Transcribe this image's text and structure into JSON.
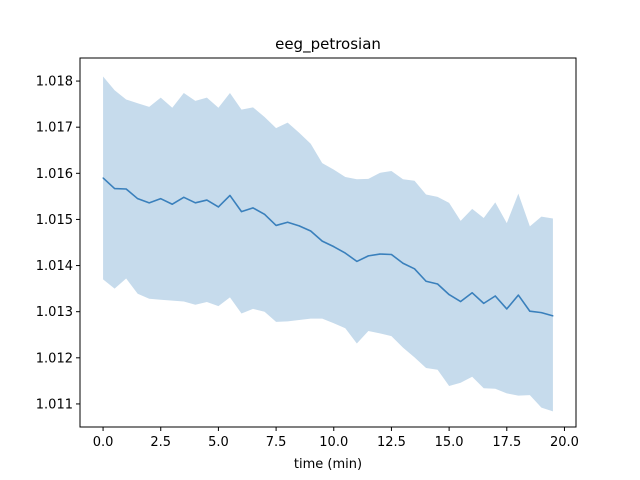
{
  "chart_data": {
    "type": "line",
    "title": "eeg_petrosian",
    "xlabel": "time (min)",
    "ylabel": "",
    "xlim": [
      -1.0,
      20.5
    ],
    "ylim": [
      1.0105,
      1.0185
    ],
    "xticks": [
      0.0,
      2.5,
      5.0,
      7.5,
      10.0,
      12.5,
      15.0,
      17.5,
      20.0
    ],
    "xtick_labels": [
      "0.0",
      "2.5",
      "5.0",
      "7.5",
      "10.0",
      "12.5",
      "15.0",
      "17.5",
      "20.0"
    ],
    "yticks": [
      1.011,
      1.012,
      1.013,
      1.014,
      1.015,
      1.016,
      1.017,
      1.018
    ],
    "ytick_labels": [
      "1.011",
      "1.012",
      "1.013",
      "1.014",
      "1.015",
      "1.016",
      "1.017",
      "1.018"
    ],
    "grid": false,
    "colors": {
      "line": "#3a80bc",
      "band": "#c6dbec"
    },
    "series": [
      {
        "x": [
          0.0,
          0.5,
          1.0,
          1.5,
          2.0,
          2.5,
          3.0,
          3.5,
          4.0,
          4.5,
          5.0,
          5.5,
          6.0,
          6.5,
          7.0,
          7.5,
          8.0,
          8.5,
          9.0,
          9.5,
          10.0,
          10.5,
          11.0,
          11.5,
          12.0,
          12.5,
          13.0,
          13.5,
          14.0,
          14.5,
          15.0,
          15.5,
          16.0,
          16.5,
          17.0,
          17.5,
          18.0,
          18.5,
          19.0,
          19.5
        ],
        "mean": [
          1.0159,
          1.01567,
          1.01566,
          1.01545,
          1.01536,
          1.01545,
          1.01533,
          1.01548,
          1.01536,
          1.01542,
          1.01527,
          1.01552,
          1.01517,
          1.01525,
          1.01511,
          1.01487,
          1.01494,
          1.01486,
          1.01475,
          1.01453,
          1.01441,
          1.01427,
          1.01409,
          1.01421,
          1.01425,
          1.01424,
          1.01405,
          1.01393,
          1.01366,
          1.0136,
          1.01337,
          1.01322,
          1.01341,
          1.01318,
          1.01334,
          1.01306,
          1.01336,
          1.01301,
          1.01298,
          1.01291
        ],
        "upper": [
          1.0181,
          1.0178,
          1.0176,
          1.01752,
          1.01744,
          1.01764,
          1.01742,
          1.01774,
          1.01757,
          1.01764,
          1.01742,
          1.01774,
          1.01738,
          1.01743,
          1.01722,
          1.01698,
          1.0171,
          1.01688,
          1.01664,
          1.01622,
          1.01608,
          1.01592,
          1.01587,
          1.01588,
          1.01601,
          1.01605,
          1.01587,
          1.01584,
          1.01554,
          1.01549,
          1.01536,
          1.01497,
          1.01523,
          1.01503,
          1.01537,
          1.01492,
          1.01556,
          1.01485,
          1.01506,
          1.01502
        ],
        "lower": [
          1.0137,
          1.0135,
          1.01372,
          1.01339,
          1.01328,
          1.01326,
          1.01324,
          1.01322,
          1.01315,
          1.01321,
          1.01312,
          1.01331,
          1.01296,
          1.01306,
          1.013,
          1.01278,
          1.01279,
          1.01282,
          1.01285,
          1.01285,
          1.01275,
          1.01264,
          1.01231,
          1.01258,
          1.01253,
          1.01247,
          1.01222,
          1.01201,
          1.01178,
          1.01174,
          1.01139,
          1.01146,
          1.01159,
          1.01134,
          1.01133,
          1.01123,
          1.01118,
          1.01119,
          1.01092,
          1.01084
        ]
      }
    ]
  }
}
